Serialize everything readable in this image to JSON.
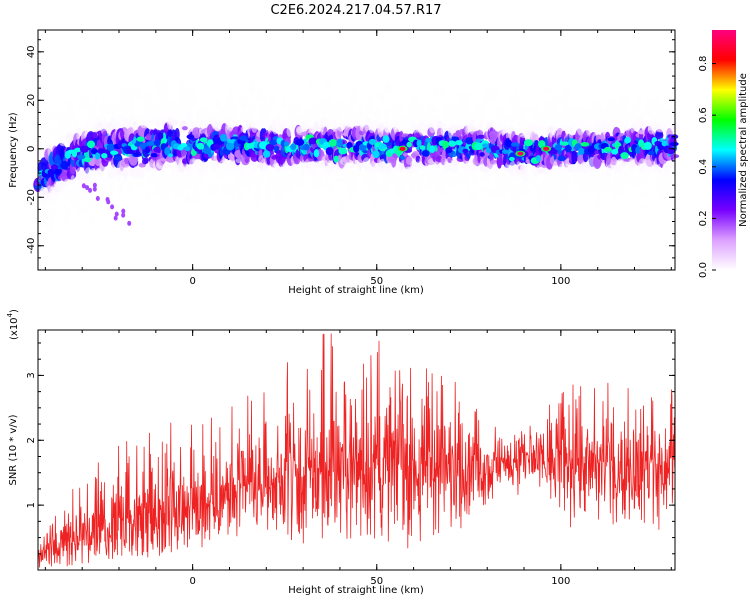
{
  "title": "C2E6.2024.217.04.57.R17",
  "chart_data": [
    {
      "type": "heatmap",
      "xlabel": "Height of straight line (km)",
      "ylabel": "Frequency (Hz)",
      "xlim": [
        -42,
        131
      ],
      "ylim": [
        -50,
        49
      ],
      "x_ticks": [
        0,
        50,
        100
      ],
      "y_ticks": [
        -40,
        -20,
        0,
        20,
        40
      ],
      "colorbar": {
        "label": "Normalized spectral amplitude",
        "range": [
          0.0,
          0.93
        ],
        "ticks": [
          0.0,
          0.2,
          0.4,
          0.6,
          0.8
        ],
        "colors": [
          "#ffffff",
          "#dda0ff",
          "#7700ff",
          "#0000ff",
          "#00ffff",
          "#00ff00",
          "#ffff00",
          "#ff0000",
          "#ff007f"
        ]
      },
      "trace": {
        "description": "dominant Doppler frequency vs height",
        "x": [
          -42,
          -35,
          -25,
          -15,
          -5,
          0,
          10,
          20,
          30,
          40,
          50,
          57,
          65,
          75,
          83,
          90,
          95,
          100,
          110,
          120,
          131
        ],
        "y": [
          -12,
          -5,
          0,
          0,
          2,
          1,
          2,
          1,
          1,
          1,
          1,
          0,
          1,
          1,
          0,
          -2,
          -1,
          0,
          0,
          1,
          1
        ],
        "peaks": [
          {
            "x": 57,
            "y": 0,
            "value": 0.85
          },
          {
            "x": 89,
            "y": -2,
            "value": 0.9
          },
          {
            "x": 96,
            "y": 0,
            "value": 0.88
          }
        ]
      },
      "grid": false
    },
    {
      "type": "line",
      "xlabel": "Height of straight line (km)",
      "ylabel": "SNR (10 * v/v)",
      "yscale_label": "(x10",
      "yscale_exp": "4",
      "yscale_close": ")",
      "xlim": [
        -42,
        131
      ],
      "ylim": [
        0,
        3.7
      ],
      "x_ticks": [
        0,
        50,
        100
      ],
      "y_ticks": [
        1,
        2,
        3
      ],
      "line_color": "#ee2222",
      "envelope": {
        "x": [
          -42,
          -35,
          -30,
          -20,
          -10,
          0,
          10,
          20,
          30,
          40,
          50,
          60,
          70,
          80,
          85,
          90,
          100,
          110,
          120,
          131
        ],
        "mean": [
          0.2,
          0.45,
          0.6,
          0.7,
          0.85,
          1.05,
          1.2,
          1.35,
          1.45,
          1.55,
          1.6,
          1.65,
          1.55,
          1.6,
          1.65,
          1.7,
          1.6,
          1.65,
          1.6,
          1.55
        ],
        "max": [
          0.35,
          1.1,
          1.5,
          2.0,
          2.2,
          2.4,
          2.5,
          3.0,
          3.6,
          3.7,
          3.7,
          3.2,
          3.0,
          2.4,
          2.1,
          2.2,
          2.8,
          3.0,
          3.0,
          2.9
        ],
        "min": [
          0.0,
          0.05,
          0.1,
          0.15,
          0.2,
          0.3,
          0.5,
          0.6,
          0.4,
          0.5,
          0.4,
          0.3,
          0.5,
          0.9,
          1.2,
          1.1,
          0.4,
          0.7,
          0.6,
          0.6
        ]
      },
      "grid": false
    }
  ]
}
